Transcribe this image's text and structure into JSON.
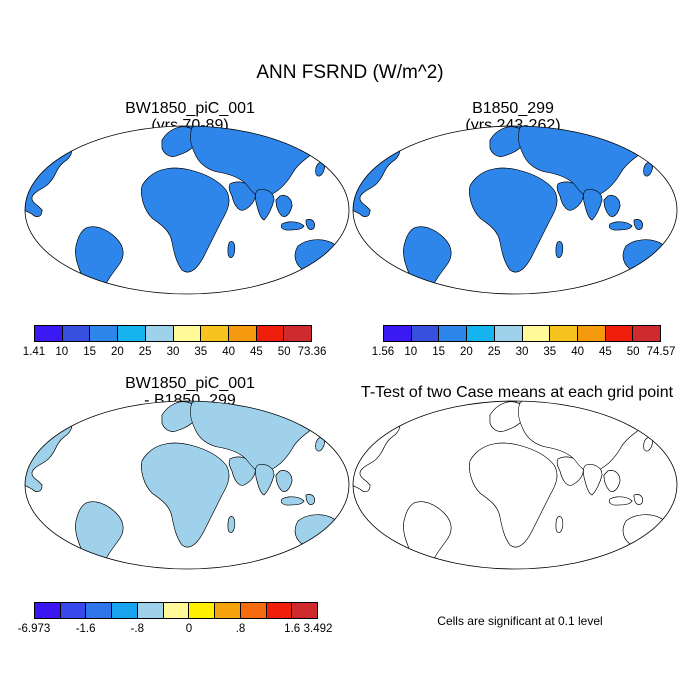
{
  "main_title": "ANN FSRND (W/m^2)",
  "panels": [
    {
      "id": "p1",
      "title_line1": "BW1850_piC_001",
      "title_line2": "(yrs 70-89)"
    },
    {
      "id": "p2",
      "title_line1": "B1850_299",
      "title_line2": "(yrs 243-262)"
    },
    {
      "id": "p3",
      "title_line1": "BW1850_piC_001",
      "title_line2": "- B1850_299"
    },
    {
      "id": "p4",
      "title_line1": "T-Test of two Case means at each grid point",
      "title_line2": ""
    }
  ],
  "colorbars": {
    "abs_colors": [
      "#3a19f2",
      "#3850e0",
      "#2f86ea",
      "#16b4ee",
      "#9ed2ea",
      "#fff99a",
      "#f7c31f",
      "#f59a0e",
      "#ef1f0b",
      "#cf2a2d"
    ],
    "p1_labels": [
      "1.41",
      "10",
      "15",
      "20",
      "25",
      "30",
      "35",
      "40",
      "45",
      "50",
      "73.36"
    ],
    "p2_labels": [
      "1.56",
      "10",
      "15",
      "20",
      "25",
      "30",
      "35",
      "40",
      "45",
      "50",
      "74.57"
    ],
    "diff_colors": [
      "#3b16f0",
      "#3848ea",
      "#2f76ea",
      "#18a4ee",
      "#9fd2ea",
      "#fff99a",
      "#fff000",
      "#f6a30e",
      "#f66b0d",
      "#ef1f0b",
      "#cf2a2d"
    ],
    "p3_labels": [
      "-6.973",
      "-1.6",
      "-.8",
      "0",
      ".8",
      "1.6",
      "3.492"
    ],
    "p3_label_slots": [
      0,
      2,
      4,
      6,
      8,
      10,
      11
    ]
  },
  "ttest_note": "Cells are significant at 0.1 level",
  "colors": {
    "significant": "#ee0000",
    "ocean": "#ffffff",
    "coast": "#000000"
  }
}
